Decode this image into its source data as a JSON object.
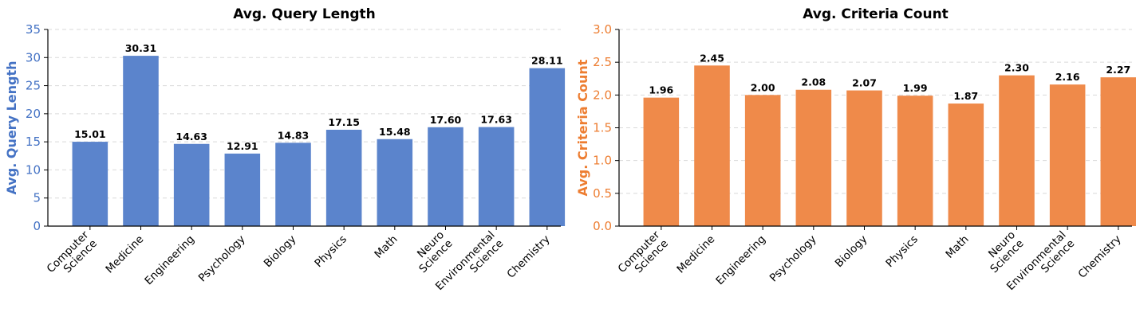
{
  "chart_data": [
    {
      "type": "bar",
      "title": "Avg. Query Length",
      "ylabel": "Avg. Query Length",
      "xlabel": "",
      "categories": [
        "Computer\nScience",
        "Medicine",
        "Engineering",
        "Psychology",
        "Biology",
        "Physics",
        "Math",
        "Neuro\nScience",
        "Environmental\nScience",
        "Chemistry"
      ],
      "values": [
        15.01,
        30.31,
        14.63,
        12.91,
        14.83,
        17.15,
        15.48,
        17.6,
        17.63,
        28.11
      ],
      "value_labels": [
        "15.01",
        "30.31",
        "14.63",
        "12.91",
        "14.83",
        "17.15",
        "15.48",
        "17.60",
        "17.63",
        "28.11"
      ],
      "ylim": [
        0,
        35
      ],
      "yticks": [
        0,
        5,
        10,
        15,
        20,
        25,
        30,
        35
      ],
      "ytick_labels": [
        "0",
        "5",
        "10",
        "15",
        "20",
        "25",
        "30",
        "35"
      ],
      "grid": true,
      "bar_color": "#5b84cc",
      "axis_color": "#4472c4"
    },
    {
      "type": "bar",
      "title": "Avg. Criteria Count",
      "ylabel": "Avg. Criteria Count",
      "xlabel": "",
      "categories": [
        "Computer\nScience",
        "Medicine",
        "Engineering",
        "Psychology",
        "Biology",
        "Physics",
        "Math",
        "Neuro\nScience",
        "Environmental\nScience",
        "Chemistry"
      ],
      "values": [
        1.96,
        2.45,
        2.0,
        2.08,
        2.07,
        1.99,
        1.87,
        2.3,
        2.16,
        2.27
      ],
      "value_labels": [
        "1.96",
        "2.45",
        "2.00",
        "2.08",
        "2.07",
        "1.99",
        "1.87",
        "2.30",
        "2.16",
        "2.27"
      ],
      "ylim": [
        0,
        3.0
      ],
      "yticks": [
        0,
        0.5,
        1.0,
        1.5,
        2.0,
        2.5,
        3.0
      ],
      "ytick_labels": [
        "0.0",
        "0.5",
        "1.0",
        "1.5",
        "2.0",
        "2.5",
        "3.0"
      ],
      "grid": true,
      "bar_color": "#ef8a4a",
      "axis_color": "#ed7d31"
    }
  ]
}
